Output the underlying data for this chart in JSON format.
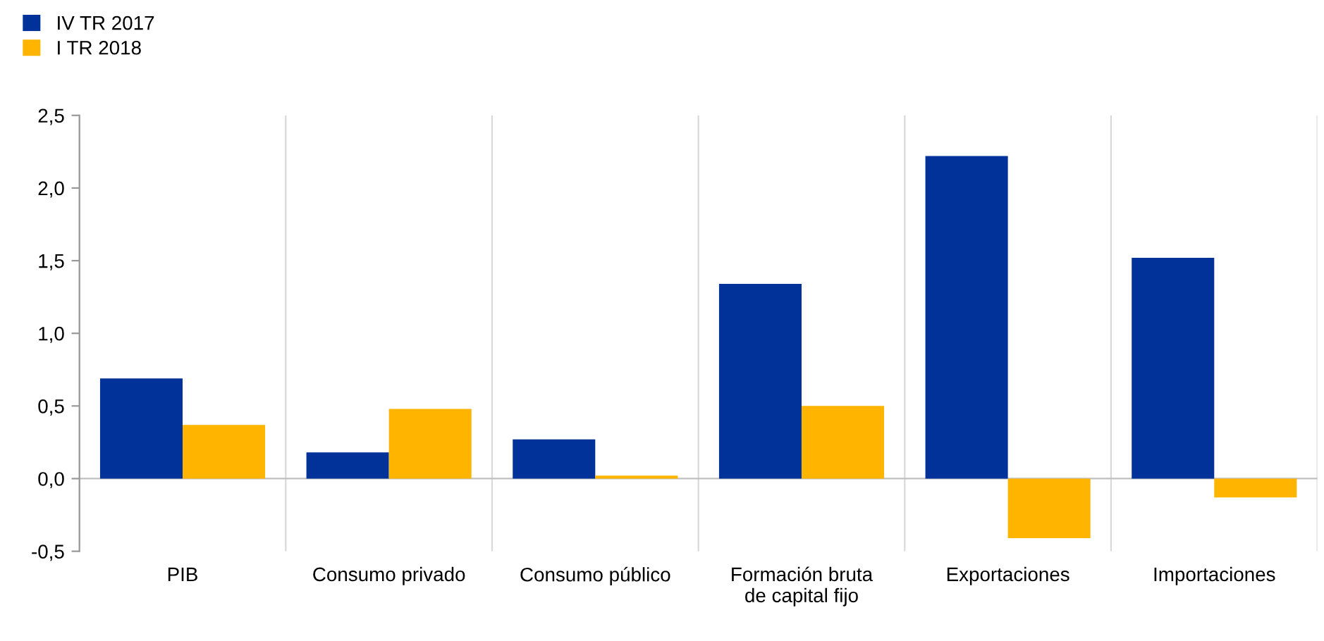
{
  "chart_data": {
    "type": "bar",
    "categories": [
      "PIB",
      "Consumo privado",
      "Consumo público",
      "Formación bruta\nde capital fijo",
      "Exportaciones",
      "Importaciones"
    ],
    "series": [
      {
        "name": "IV TR 2017",
        "color": "#003299",
        "values": [
          0.69,
          0.18,
          0.27,
          1.34,
          2.22,
          1.52
        ]
      },
      {
        "name": "I TR 2018",
        "color": "#ffb400",
        "values": [
          0.37,
          0.48,
          0.02,
          0.5,
          -0.41,
          -0.13
        ]
      }
    ],
    "ylim": [
      -0.5,
      2.5
    ],
    "yticks": [
      {
        "value": -0.5,
        "label": "-0,5"
      },
      {
        "value": 0,
        "label": "0,0"
      },
      {
        "value": 0.5,
        "label": "0,5"
      },
      {
        "value": 1,
        "label": "1,0"
      },
      {
        "value": 1.5,
        "label": "1,5"
      },
      {
        "value": 2,
        "label": "2,0"
      },
      {
        "value": 2.5,
        "label": "2,5"
      }
    ],
    "grid": "x",
    "legend": "top left"
  }
}
